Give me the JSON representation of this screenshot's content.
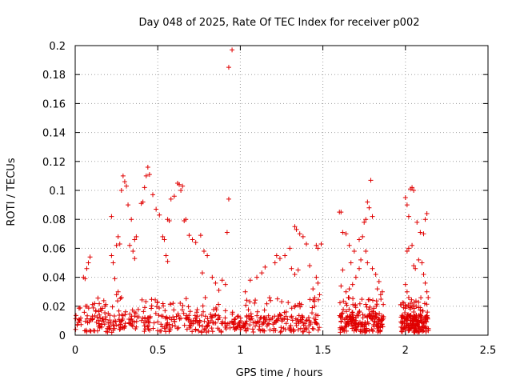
{
  "chart_data": {
    "type": "scatter",
    "title": "Day 048 of 2025, Rate Of TEC Index for receiver p002",
    "xlabel": "GPS time / hours",
    "ylabel": "ROTI / TECUs",
    "xlim": [
      0,
      2.5
    ],
    "ylim": [
      0,
      0.2
    ],
    "x_ticks": [
      0,
      0.5,
      1,
      1.5,
      2,
      2.5
    ],
    "x_tick_labels": [
      "0",
      "0.5",
      "1",
      "1.5",
      "2",
      "2.5"
    ],
    "y_ticks": [
      0,
      0.02,
      0.04,
      0.06,
      0.08,
      0.1,
      0.12,
      0.14,
      0.16,
      0.18,
      0.2
    ],
    "y_tick_labels": [
      "0",
      "0.02",
      "0.04",
      "0.06",
      "0.08",
      "0.1",
      "0.12",
      "0.14",
      "0.16",
      "0.18",
      "0.2"
    ],
    "grid": true,
    "marker": "+",
    "color": "#e00000",
    "series": [
      {
        "name": "ROTI",
        "points": [
          [
            0.93,
            0.185
          ],
          [
            0.95,
            0.197
          ],
          [
            0.93,
            0.094
          ],
          [
            0.92,
            0.071
          ],
          [
            0.29,
            0.11
          ],
          [
            0.3,
            0.106
          ],
          [
            0.31,
            0.103
          ],
          [
            0.28,
            0.1
          ],
          [
            0.44,
            0.116
          ],
          [
            0.43,
            0.11
          ],
          [
            0.45,
            0.111
          ],
          [
            0.42,
            0.102
          ],
          [
            0.41,
            0.092
          ],
          [
            0.4,
            0.091
          ],
          [
            0.62,
            0.105
          ],
          [
            0.63,
            0.104
          ],
          [
            0.65,
            0.103
          ],
          [
            0.64,
            0.1
          ],
          [
            0.6,
            0.096
          ],
          [
            0.58,
            0.094
          ],
          [
            0.22,
            0.082
          ],
          [
            0.32,
            0.09
          ],
          [
            0.34,
            0.08
          ],
          [
            0.37,
            0.068
          ],
          [
            0.36,
            0.066
          ],
          [
            0.47,
            0.097
          ],
          [
            0.49,
            0.087
          ],
          [
            0.51,
            0.083
          ],
          [
            0.53,
            0.068
          ],
          [
            0.54,
            0.066
          ],
          [
            0.56,
            0.08
          ],
          [
            0.57,
            0.079
          ],
          [
            0.55,
            0.055
          ],
          [
            0.56,
            0.051
          ],
          [
            0.67,
            0.08
          ],
          [
            0.66,
            0.079
          ],
          [
            0.69,
            0.069
          ],
          [
            0.71,
            0.066
          ],
          [
            0.73,
            0.064
          ],
          [
            0.76,
            0.069
          ],
          [
            0.78,
            0.058
          ],
          [
            0.8,
            0.055
          ],
          [
            0.77,
            0.043
          ],
          [
            0.26,
            0.068
          ],
          [
            0.25,
            0.062
          ],
          [
            0.27,
            0.063
          ],
          [
            0.22,
            0.055
          ],
          [
            0.23,
            0.05
          ],
          [
            0.33,
            0.062
          ],
          [
            0.35,
            0.058
          ],
          [
            0.36,
            0.053
          ],
          [
            0.24,
            0.039
          ],
          [
            0.05,
            0.04
          ],
          [
            0.06,
            0.039
          ],
          [
            0.07,
            0.046
          ],
          [
            0.08,
            0.05
          ],
          [
            0.09,
            0.054
          ],
          [
            0.25,
            0.028
          ],
          [
            0.26,
            0.03
          ],
          [
            0.28,
            0.026
          ],
          [
            0.2,
            0.015
          ],
          [
            0.18,
            0.02
          ],
          [
            1.21,
            0.05
          ],
          [
            1.22,
            0.055
          ],
          [
            1.24,
            0.053
          ],
          [
            1.27,
            0.055
          ],
          [
            1.3,
            0.06
          ],
          [
            1.33,
            0.075
          ],
          [
            1.34,
            0.073
          ],
          [
            1.36,
            0.07
          ],
          [
            1.38,
            0.068
          ],
          [
            1.4,
            0.063
          ],
          [
            1.42,
            0.048
          ],
          [
            1.31,
            0.046
          ],
          [
            1.33,
            0.042
          ],
          [
            1.35,
            0.045
          ],
          [
            1.44,
            0.032
          ],
          [
            1.46,
            0.062
          ],
          [
            1.47,
            0.06
          ],
          [
            1.49,
            0.063
          ],
          [
            1.46,
            0.04
          ],
          [
            1.47,
            0.036
          ],
          [
            1.48,
            0.028
          ],
          [
            1.45,
            0.02
          ],
          [
            1.15,
            0.047
          ],
          [
            1.13,
            0.043
          ],
          [
            1.1,
            0.04
          ],
          [
            1.06,
            0.038
          ],
          [
            1.03,
            0.03
          ],
          [
            0.83,
            0.04
          ],
          [
            0.85,
            0.036
          ],
          [
            0.87,
            0.031
          ],
          [
            0.89,
            0.038
          ],
          [
            0.91,
            0.035
          ],
          [
            1.6,
            0.085
          ],
          [
            1.61,
            0.085
          ],
          [
            1.62,
            0.071
          ],
          [
            1.64,
            0.07
          ],
          [
            1.66,
            0.062
          ],
          [
            1.67,
            0.05
          ],
          [
            1.69,
            0.058
          ],
          [
            1.72,
            0.066
          ],
          [
            1.74,
            0.068
          ],
          [
            1.76,
            0.058
          ],
          [
            1.79,
            0.107
          ],
          [
            1.77,
            0.092
          ],
          [
            1.78,
            0.088
          ],
          [
            1.76,
            0.08
          ],
          [
            1.75,
            0.078
          ],
          [
            1.8,
            0.082
          ],
          [
            1.73,
            0.052
          ],
          [
            1.72,
            0.046
          ],
          [
            1.7,
            0.04
          ],
          [
            1.68,
            0.035
          ],
          [
            1.66,
            0.032
          ],
          [
            1.64,
            0.03
          ],
          [
            1.62,
            0.045
          ],
          [
            1.61,
            0.034
          ],
          [
            1.77,
            0.05
          ],
          [
            1.8,
            0.046
          ],
          [
            1.82,
            0.042
          ],
          [
            1.84,
            0.037
          ],
          [
            1.86,
            0.03
          ],
          [
            1.83,
            0.032
          ],
          [
            1.85,
            0.028
          ],
          [
            2.0,
            0.095
          ],
          [
            2.01,
            0.09
          ],
          [
            2.03,
            0.101
          ],
          [
            2.04,
            0.102
          ],
          [
            2.05,
            0.1
          ],
          [
            2.02,
            0.082
          ],
          [
            2.07,
            0.078
          ],
          [
            2.09,
            0.071
          ],
          [
            2.11,
            0.07
          ],
          [
            2.12,
            0.08
          ],
          [
            2.13,
            0.084
          ],
          [
            2.01,
            0.058
          ],
          [
            2.02,
            0.06
          ],
          [
            2.04,
            0.062
          ],
          [
            2.05,
            0.048
          ],
          [
            2.06,
            0.046
          ],
          [
            2.08,
            0.052
          ],
          [
            2.1,
            0.05
          ],
          [
            2.11,
            0.042
          ],
          [
            2.12,
            0.036
          ],
          [
            2.13,
            0.03
          ],
          [
            2.0,
            0.035
          ],
          [
            2.01,
            0.03
          ],
          [
            2.02,
            0.026
          ],
          [
            2.03,
            0.022
          ],
          [
            2.04,
            0.02
          ],
          [
            2.05,
            0.016
          ],
          [
            2.06,
            0.012
          ],
          [
            2.07,
            0.008
          ],
          [
            2.08,
            0.006
          ],
          [
            2.09,
            0.004
          ]
        ]
      }
    ]
  }
}
